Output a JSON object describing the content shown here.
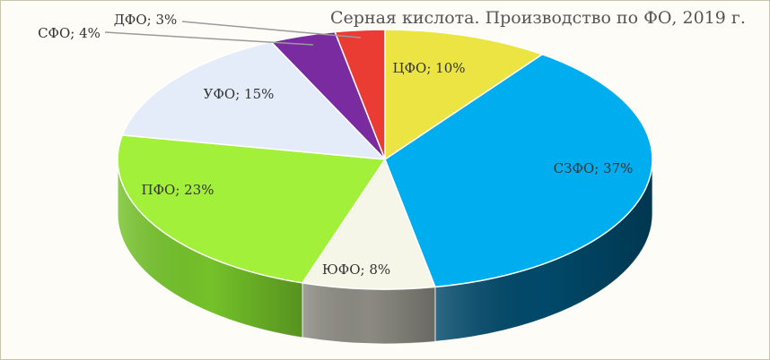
{
  "chart_data": {
    "type": "pie",
    "style": "3d-tilted",
    "title": "Серная кислота. Производство по ФО, 2019 г.",
    "slices": [
      {
        "label": "ЦФО; 10%",
        "name": "ЦФО",
        "value": 10,
        "color": "#ece443",
        "side_color": "#9a9430"
      },
      {
        "label": "СЗФО; 37%",
        "name": "СЗФО",
        "value": 37,
        "color": "#00adee",
        "side_color": "#01496a"
      },
      {
        "label": "ЮФО; 8%",
        "name": "ЮФО",
        "value": 8,
        "color": "#f6f6e8",
        "side_color": "#8c8b83"
      },
      {
        "label": "ПФО; 23%",
        "name": "ПФО",
        "value": 23,
        "color": "#a3f03a",
        "side_color": "#74c22a"
      },
      {
        "label": "УФО; 15%",
        "name": "УФО",
        "value": 15,
        "color": "#e4ecf9",
        "side_color": "#b7c0cd"
      },
      {
        "label": "СФО; 4%",
        "name": "СФО",
        "value": 4,
        "color": "#7a2ba0",
        "side_color": "#4a1a62"
      },
      {
        "label": "ДФО; 3%",
        "name": "ДФО",
        "value": 3,
        "color": "#ea3c33",
        "side_color": "#8a221d"
      }
    ],
    "legend": "none"
  }
}
